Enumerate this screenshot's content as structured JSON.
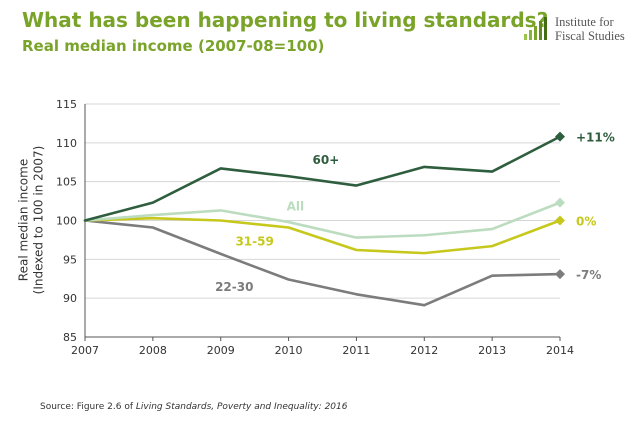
{
  "header": {
    "title": "What has been happening to living standards?",
    "subtitle": "Real median income (2007-08=100)"
  },
  "logo": {
    "line1": "Institute for",
    "line2": "Fiscal Studies"
  },
  "source": {
    "prefix": "Source: Figure 2.6 of ",
    "publication": "Living Standards, Poverty and Inequality: 2016"
  },
  "colors": {
    "title": "#7aa329",
    "grid": "#d6d6d6",
    "axis": "#555555"
  },
  "chart_data": {
    "type": "line",
    "title": "What has been happening to living standards?",
    "subtitle": "Real median income (2007-08=100)",
    "ylabel": "Real median income (Indexed to 100 in 2007)",
    "ylabel_lines": [
      "Real median income",
      "(Indexed to 100 in 2007)"
    ],
    "xlabel": "",
    "x": [
      2007,
      2008,
      2009,
      2010,
      2011,
      2012,
      2013,
      2014
    ],
    "ylim": [
      85,
      115
    ],
    "yticks": [
      85,
      90,
      95,
      100,
      105,
      110,
      115
    ],
    "grid": true,
    "series": [
      {
        "name": "60+",
        "color": "#2e5e3e",
        "end_label": "+11%",
        "values": [
          100,
          102.3,
          106.7,
          105.7,
          104.5,
          106.9,
          106.3,
          110.8
        ]
      },
      {
        "name": "All",
        "color": "#bcdcc0",
        "end_label": "",
        "values": [
          100,
          100.7,
          101.3,
          99.8,
          97.8,
          98.1,
          98.9,
          102.3
        ]
      },
      {
        "name": "31-59",
        "color": "#c6c81c",
        "end_label": "0%",
        "values": [
          100,
          100.3,
          100.0,
          99.1,
          96.2,
          95.8,
          96.7,
          100.0
        ]
      },
      {
        "name": "22-30",
        "color": "#7c7c7c",
        "end_label": "-7%",
        "values": [
          100,
          99.1,
          95.7,
          92.4,
          90.5,
          89.1,
          92.9,
          93.1
        ]
      }
    ]
  }
}
